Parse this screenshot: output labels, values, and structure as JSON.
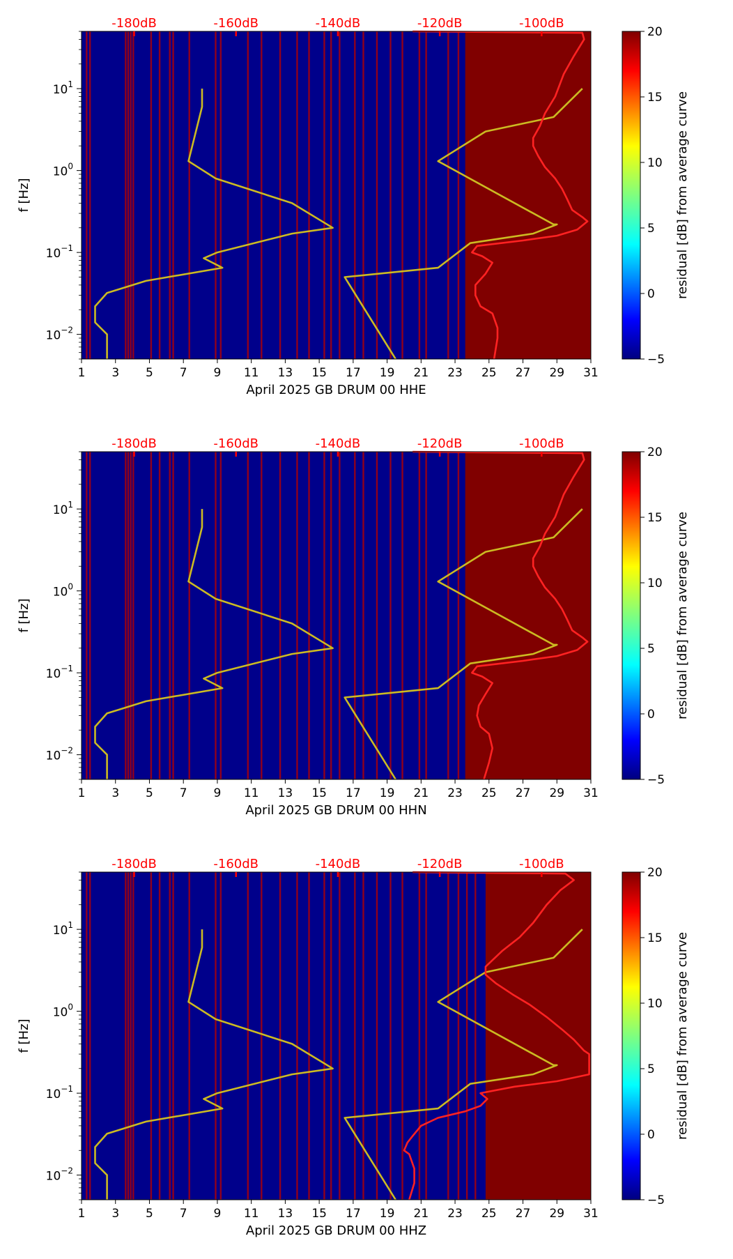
{
  "chart_data": [
    {
      "type": "heatmap",
      "xlabel": "April 2025 GB DRUM 00 HHE",
      "ylabel": "f [Hz]",
      "x_ticks": [
        "1",
        "3",
        "5",
        "7",
        "9",
        "11",
        "13",
        "15",
        "17",
        "19",
        "21",
        "23",
        "25",
        "27",
        "29",
        "31"
      ],
      "xlim": [
        1,
        31
      ],
      "y_scale": "log",
      "ylim": [
        0.005,
        50
      ],
      "y_ticks": [
        {
          "value": 0.01,
          "base": "10",
          "exp": "−2"
        },
        {
          "value": 0.1,
          "base": "10",
          "exp": "−1"
        },
        {
          "value": 1,
          "base": "10",
          "exp": "0"
        },
        {
          "value": 10,
          "base": "10",
          "exp": "1"
        }
      ],
      "top_axis_labels": [
        "-180dB",
        "-160dB",
        "-140dB",
        "-120dB",
        "-100dB"
      ],
      "top_axis_positions": [
        4.1,
        10.1,
        16.1,
        22.1,
        28.1
      ],
      "colorbar": {
        "label": "residual [dB] from average curve",
        "range": [
          -5,
          20
        ],
        "ticks": [
          "20",
          "15",
          "10",
          "5",
          "0",
          "−5"
        ],
        "colormap": "jet"
      },
      "background_color": "#00008b",
      "high_residual_block": {
        "x_start": 23.6,
        "x_end": 31,
        "color": "#800000"
      },
      "red_bands_x": [
        1.3,
        1.5,
        3.6,
        3.75,
        3.9,
        4.05,
        5.1,
        5.6,
        6.2,
        6.4,
        7.35,
        8.9,
        9.2,
        10.8,
        11.6,
        12.7,
        13.7,
        14.4,
        15.3,
        15.7,
        16.2,
        17.1,
        17.6,
        18.4,
        19.2,
        19.9,
        20.9,
        21.3,
        22.6,
        23.2
      ],
      "series": [
        {
          "color": "#ccbb22",
          "points": [
            [
              8.1,
              10
            ],
            [
              8.1,
              6
            ],
            [
              7.3,
              1.3
            ],
            [
              8.9,
              0.8
            ],
            [
              13.4,
              0.4
            ],
            [
              15.8,
              0.2
            ],
            [
              15.8,
              0.2
            ],
            [
              13.4,
              0.17
            ],
            [
              9.0,
              0.1
            ],
            [
              8.2,
              0.085
            ],
            [
              9.3,
              0.065
            ],
            [
              4.8,
              0.045
            ],
            [
              2.5,
              0.032
            ],
            [
              1.8,
              0.022
            ],
            [
              1.8,
              0.014
            ],
            [
              2.5,
              0.01
            ],
            [
              2.5,
              0.005
            ]
          ]
        },
        {
          "color": "#ccbb22",
          "points": [
            [
              30.5,
              10
            ],
            [
              28.8,
              4.5
            ],
            [
              24.8,
              3
            ],
            [
              22.0,
              1.3
            ],
            [
              28.8,
              0.22
            ],
            [
              29.0,
              0.22
            ],
            [
              27.6,
              0.17
            ],
            [
              23.9,
              0.13
            ],
            [
              22.0,
              0.065
            ],
            [
              16.5,
              0.05
            ],
            [
              19.5,
              0.005
            ]
          ]
        },
        {
          "color": "#ff2222",
          "points": [
            [
              20.5,
              50
            ],
            [
              30.5,
              48
            ],
            [
              30.6,
              40
            ],
            [
              30.0,
              25
            ],
            [
              29.4,
              15
            ],
            [
              28.9,
              8
            ],
            [
              28.3,
              5
            ],
            [
              28.0,
              3.5
            ],
            [
              27.6,
              2.5
            ],
            [
              27.6,
              2.0
            ],
            [
              27.9,
              1.5
            ],
            [
              28.3,
              1.1
            ],
            [
              28.9,
              0.8
            ],
            [
              29.3,
              0.6
            ],
            [
              29.6,
              0.45
            ],
            [
              29.9,
              0.33
            ],
            [
              30.5,
              0.27
            ],
            [
              30.8,
              0.24
            ],
            [
              30.2,
              0.19
            ],
            [
              29.0,
              0.16
            ],
            [
              27.0,
              0.14
            ],
            [
              24.3,
              0.12
            ],
            [
              24.0,
              0.1
            ],
            [
              24.6,
              0.09
            ],
            [
              25.2,
              0.075
            ],
            [
              24.8,
              0.055
            ],
            [
              24.2,
              0.04
            ],
            [
              24.2,
              0.03
            ],
            [
              24.5,
              0.022
            ],
            [
              25.2,
              0.018
            ],
            [
              25.5,
              0.012
            ],
            [
              25.5,
              0.009
            ],
            [
              25.3,
              0.005
            ]
          ]
        }
      ]
    },
    {
      "type": "heatmap",
      "xlabel": "April 2025 GB DRUM 00 HHN",
      "ylabel": "f [Hz]",
      "x_ticks": [
        "1",
        "3",
        "5",
        "7",
        "9",
        "11",
        "13",
        "15",
        "17",
        "19",
        "21",
        "23",
        "25",
        "27",
        "29",
        "31"
      ],
      "xlim": [
        1,
        31
      ],
      "y_scale": "log",
      "ylim": [
        0.005,
        50
      ],
      "y_ticks": [
        {
          "value": 0.01,
          "base": "10",
          "exp": "−2"
        },
        {
          "value": 0.1,
          "base": "10",
          "exp": "−1"
        },
        {
          "value": 1,
          "base": "10",
          "exp": "0"
        },
        {
          "value": 10,
          "base": "10",
          "exp": "1"
        }
      ],
      "top_axis_labels": [
        "-180dB",
        "-160dB",
        "-140dB",
        "-120dB",
        "-100dB"
      ],
      "top_axis_positions": [
        4.1,
        10.1,
        16.1,
        22.1,
        28.1
      ],
      "colorbar": {
        "label": "residual [dB] from average curve",
        "range": [
          -5,
          20
        ],
        "ticks": [
          "20",
          "15",
          "10",
          "5",
          "0",
          "−5"
        ],
        "colormap": "jet"
      },
      "background_color": "#00008b",
      "high_residual_block": {
        "x_start": 23.6,
        "x_end": 31,
        "color": "#800000"
      },
      "red_bands_x": [
        1.3,
        1.5,
        3.6,
        3.75,
        3.9,
        4.05,
        5.1,
        5.6,
        6.2,
        6.4,
        7.35,
        8.9,
        9.2,
        10.8,
        11.6,
        12.7,
        13.7,
        14.4,
        15.3,
        15.7,
        16.2,
        17.1,
        17.6,
        18.4,
        19.2,
        19.9,
        20.9,
        21.3,
        22.6,
        23.2
      ],
      "series": [
        {
          "color": "#ccbb22",
          "points": [
            [
              8.1,
              10
            ],
            [
              8.1,
              6
            ],
            [
              7.3,
              1.3
            ],
            [
              8.9,
              0.8
            ],
            [
              13.4,
              0.4
            ],
            [
              15.8,
              0.2
            ],
            [
              15.8,
              0.2
            ],
            [
              13.4,
              0.17
            ],
            [
              9.0,
              0.1
            ],
            [
              8.2,
              0.085
            ],
            [
              9.3,
              0.065
            ],
            [
              4.8,
              0.045
            ],
            [
              2.5,
              0.032
            ],
            [
              1.8,
              0.022
            ],
            [
              1.8,
              0.014
            ],
            [
              2.5,
              0.01
            ],
            [
              2.5,
              0.005
            ]
          ]
        },
        {
          "color": "#ccbb22",
          "points": [
            [
              30.5,
              10
            ],
            [
              28.8,
              4.5
            ],
            [
              24.8,
              3
            ],
            [
              22.0,
              1.3
            ],
            [
              28.8,
              0.22
            ],
            [
              29.0,
              0.22
            ],
            [
              27.6,
              0.17
            ],
            [
              23.9,
              0.13
            ],
            [
              22.0,
              0.065
            ],
            [
              16.5,
              0.05
            ],
            [
              19.5,
              0.005
            ]
          ]
        },
        {
          "color": "#ff2222",
          "points": [
            [
              20.5,
              50
            ],
            [
              30.5,
              48
            ],
            [
              30.6,
              40
            ],
            [
              30.0,
              25
            ],
            [
              29.4,
              15
            ],
            [
              28.9,
              8
            ],
            [
              28.3,
              5
            ],
            [
              28.0,
              3.5
            ],
            [
              27.6,
              2.5
            ],
            [
              27.6,
              2.0
            ],
            [
              27.9,
              1.5
            ],
            [
              28.3,
              1.1
            ],
            [
              28.9,
              0.8
            ],
            [
              29.3,
              0.6
            ],
            [
              29.6,
              0.45
            ],
            [
              29.9,
              0.33
            ],
            [
              30.5,
              0.27
            ],
            [
              30.8,
              0.24
            ],
            [
              30.2,
              0.19
            ],
            [
              29.0,
              0.16
            ],
            [
              27.0,
              0.14
            ],
            [
              24.3,
              0.12
            ],
            [
              24.0,
              0.1
            ],
            [
              24.6,
              0.09
            ],
            [
              25.2,
              0.075
            ],
            [
              24.8,
              0.055
            ],
            [
              24.4,
              0.04
            ],
            [
              24.3,
              0.03
            ],
            [
              24.5,
              0.022
            ],
            [
              25.0,
              0.018
            ],
            [
              25.2,
              0.012
            ],
            [
              25.0,
              0.008
            ],
            [
              24.7,
              0.005
            ]
          ]
        }
      ]
    },
    {
      "type": "heatmap",
      "xlabel": "April 2025 GB DRUM 00 HHZ",
      "ylabel": "f [Hz]",
      "x_ticks": [
        "1",
        "3",
        "5",
        "7",
        "9",
        "11",
        "13",
        "15",
        "17",
        "19",
        "21",
        "23",
        "25",
        "27",
        "29",
        "31"
      ],
      "xlim": [
        1,
        31
      ],
      "y_scale": "log",
      "ylim": [
        0.005,
        50
      ],
      "y_ticks": [
        {
          "value": 0.01,
          "base": "10",
          "exp": "−2"
        },
        {
          "value": 0.1,
          "base": "10",
          "exp": "−1"
        },
        {
          "value": 1,
          "base": "10",
          "exp": "0"
        },
        {
          "value": 10,
          "base": "10",
          "exp": "1"
        }
      ],
      "top_axis_labels": [
        "-180dB",
        "-160dB",
        "-140dB",
        "-120dB",
        "-100dB"
      ],
      "top_axis_positions": [
        4.1,
        10.1,
        16.1,
        22.1,
        28.1
      ],
      "colorbar": {
        "label": "residual [dB] from average curve",
        "range": [
          -5,
          20
        ],
        "ticks": [
          "20",
          "15",
          "10",
          "5",
          "0",
          "−5"
        ],
        "colormap": "jet"
      },
      "background_color": "#00008b",
      "high_residual_block": {
        "x_start": 24.8,
        "x_end": 31,
        "color": "#800000"
      },
      "red_bands_x": [
        1.3,
        1.5,
        3.6,
        3.75,
        3.9,
        4.05,
        5.1,
        5.6,
        6.2,
        6.4,
        7.35,
        8.9,
        9.2,
        10.8,
        11.6,
        12.7,
        13.7,
        14.4,
        15.3,
        15.7,
        16.2,
        17.1,
        17.6,
        18.4,
        19.2,
        19.9,
        20.9,
        21.3,
        22.6,
        23.2,
        23.7,
        24.2
      ],
      "series": [
        {
          "color": "#ccbb22",
          "points": [
            [
              8.1,
              10
            ],
            [
              8.1,
              6
            ],
            [
              7.3,
              1.3
            ],
            [
              8.9,
              0.8
            ],
            [
              13.4,
              0.4
            ],
            [
              15.8,
              0.2
            ],
            [
              15.8,
              0.2
            ],
            [
              13.4,
              0.17
            ],
            [
              9.0,
              0.1
            ],
            [
              8.2,
              0.085
            ],
            [
              9.3,
              0.065
            ],
            [
              4.8,
              0.045
            ],
            [
              2.5,
              0.032
            ],
            [
              1.8,
              0.022
            ],
            [
              1.8,
              0.014
            ],
            [
              2.5,
              0.01
            ],
            [
              2.5,
              0.005
            ]
          ]
        },
        {
          "color": "#ccbb22",
          "points": [
            [
              30.5,
              10
            ],
            [
              28.8,
              4.5
            ],
            [
              24.8,
              3
            ],
            [
              22.0,
              1.3
            ],
            [
              28.8,
              0.22
            ],
            [
              29.0,
              0.22
            ],
            [
              27.6,
              0.17
            ],
            [
              23.9,
              0.13
            ],
            [
              22.0,
              0.065
            ],
            [
              16.5,
              0.05
            ],
            [
              19.5,
              0.005
            ]
          ]
        },
        {
          "color": "#ff2222",
          "points": [
            [
              20.5,
              50
            ],
            [
              29.5,
              48
            ],
            [
              30.0,
              40
            ],
            [
              29.2,
              30
            ],
            [
              28.4,
              20
            ],
            [
              27.6,
              12
            ],
            [
              26.8,
              8
            ],
            [
              25.8,
              5.5
            ],
            [
              24.8,
              3.5
            ],
            [
              24.8,
              2.8
            ],
            [
              25.4,
              2.2
            ],
            [
              26.4,
              1.6
            ],
            [
              27.4,
              1.2
            ],
            [
              28.4,
              0.85
            ],
            [
              29.3,
              0.6
            ],
            [
              30.0,
              0.45
            ],
            [
              30.6,
              0.33
            ],
            [
              30.9,
              0.3
            ],
            [
              30.9,
              0.17
            ],
            [
              29.0,
              0.14
            ],
            [
              26.5,
              0.12
            ],
            [
              24.5,
              0.1
            ],
            [
              24.9,
              0.085
            ],
            [
              24.5,
              0.07
            ],
            [
              23.6,
              0.06
            ],
            [
              22.0,
              0.05
            ],
            [
              21.0,
              0.04
            ],
            [
              20.5,
              0.03
            ],
            [
              20.2,
              0.025
            ],
            [
              20.0,
              0.02
            ],
            [
              20.3,
              0.018
            ],
            [
              20.6,
              0.012
            ],
            [
              20.6,
              0.008
            ],
            [
              20.3,
              0.005
            ]
          ]
        }
      ]
    }
  ]
}
